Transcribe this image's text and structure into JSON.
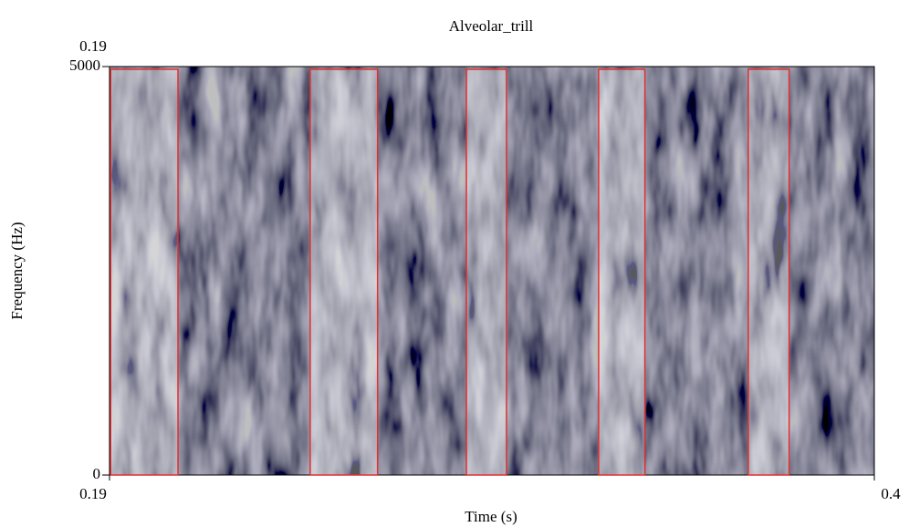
{
  "chart_data": {
    "type": "spectrogram",
    "title": "Alveolar_trill",
    "x_label": "Time (s)",
    "y_label": "Frequency (Hz)",
    "xlim": [
      0.19,
      0.4
    ],
    "xticks": [
      0.19,
      0.4
    ],
    "ylim": [
      0,
      5000
    ],
    "yticks": [
      0,
      5000
    ],
    "highlight_color": "#e0302f",
    "highlights": [
      {
        "start": 0.1903,
        "end": 0.2088
      },
      {
        "start": 0.2451,
        "end": 0.2636
      },
      {
        "start": 0.288,
        "end": 0.299
      },
      {
        "start": 0.3243,
        "end": 0.337
      },
      {
        "start": 0.3654,
        "end": 0.3766
      }
    ]
  }
}
